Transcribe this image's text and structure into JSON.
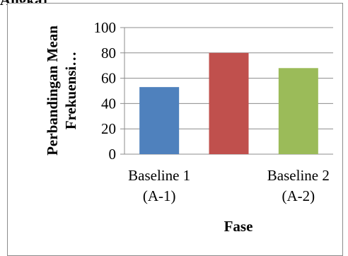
{
  "caption": "Angka)",
  "chart_data": {
    "type": "bar",
    "categories": [
      [
        "Baseline 1",
        "(A-1)"
      ],
      [
        "",
        ""
      ],
      [
        "Baseline 2",
        "(A-2)"
      ]
    ],
    "values": [
      53,
      80,
      68
    ],
    "colors": [
      "#4f81bd",
      "#c0504d",
      "#9bbb59"
    ],
    "xlabel": "Fase",
    "ylabel": [
      "Perbandingan Mean",
      "Frekuensi…"
    ],
    "ylim": [
      0,
      100
    ],
    "yticks": [
      0,
      20,
      40,
      60,
      80,
      100
    ],
    "grid": true,
    "legend": "none"
  }
}
